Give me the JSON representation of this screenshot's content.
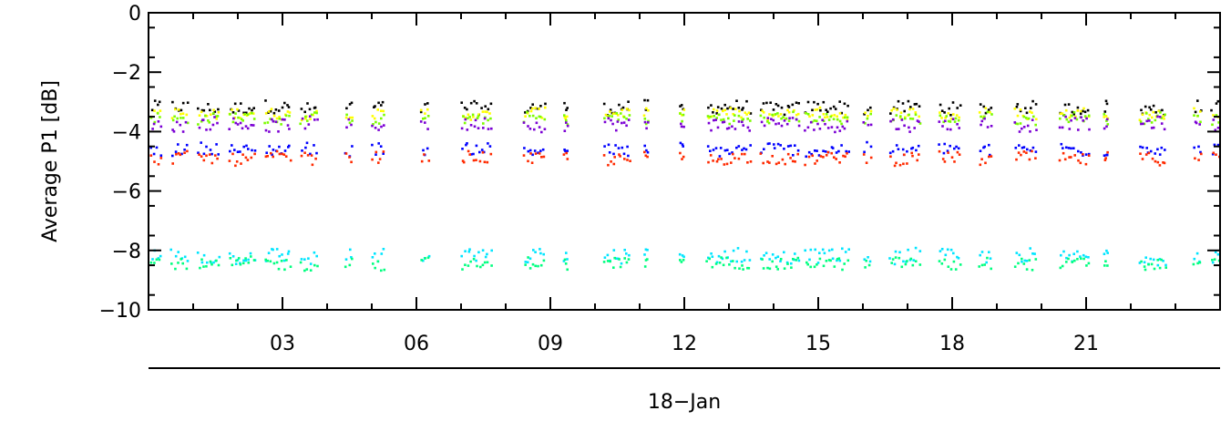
{
  "chart_data": {
    "type": "scatter",
    "title": "",
    "ylabel": "Average P1  [dB]",
    "xlabel": "18−Jan",
    "ylim": [
      -10,
      0
    ],
    "yticks": [
      0,
      -2,
      -4,
      -6,
      -8,
      -10
    ],
    "ytick_labels": [
      "0",
      "−2",
      "−4",
      "−6",
      "−8",
      "−10"
    ],
    "xlim": [
      0,
      24
    ],
    "xticks": [
      3,
      6,
      9,
      12,
      15,
      18,
      21
    ],
    "xtick_labels": [
      "03",
      "06",
      "09",
      "12",
      "15",
      "18",
      "21"
    ],
    "grid": false,
    "segments_hours": [
      [
        0.05,
        0.3
      ],
      [
        0.5,
        0.9
      ],
      [
        1.1,
        1.6
      ],
      [
        1.8,
        2.4
      ],
      [
        2.6,
        3.2
      ],
      [
        3.4,
        3.8
      ],
      [
        4.4,
        4.6
      ],
      [
        5.0,
        5.3
      ],
      [
        6.1,
        6.3
      ],
      [
        7.0,
        7.7
      ],
      [
        8.4,
        8.9
      ],
      [
        9.3,
        9.4
      ],
      [
        10.2,
        10.8
      ],
      [
        11.1,
        11.2
      ],
      [
        11.9,
        12.0
      ],
      [
        12.5,
        13.5
      ],
      [
        13.7,
        14.6
      ],
      [
        14.7,
        15.7
      ],
      [
        16.0,
        16.2
      ],
      [
        16.6,
        17.3
      ],
      [
        17.7,
        18.2
      ],
      [
        18.6,
        18.9
      ],
      [
        19.4,
        19.9
      ],
      [
        20.4,
        21.1
      ],
      [
        21.4,
        21.5
      ],
      [
        22.2,
        22.8
      ],
      [
        23.4,
        23.6
      ],
      [
        23.8,
        24.0
      ]
    ],
    "series": [
      {
        "color": "#000000",
        "values": {
          "center": -3.2,
          "spread": 0.22
        }
      },
      {
        "color": "#ffff00",
        "values": {
          "center": -3.4,
          "spread": 0.18
        }
      },
      {
        "color": "#7cfc00",
        "values": {
          "center": -3.55,
          "spread": 0.18
        }
      },
      {
        "color": "#7b00d4",
        "values": {
          "center": -3.75,
          "spread": 0.22
        }
      },
      {
        "color": "#0000ff",
        "values": {
          "center": -4.6,
          "spread": 0.2
        }
      },
      {
        "color": "#ff2a00",
        "values": {
          "center": -4.9,
          "spread": 0.2
        }
      },
      {
        "color": "#00e5ff",
        "values": {
          "center": -8.2,
          "spread": 0.25
        }
      },
      {
        "color": "#00ff7f",
        "values": {
          "center": -8.45,
          "spread": 0.2
        }
      }
    ]
  }
}
